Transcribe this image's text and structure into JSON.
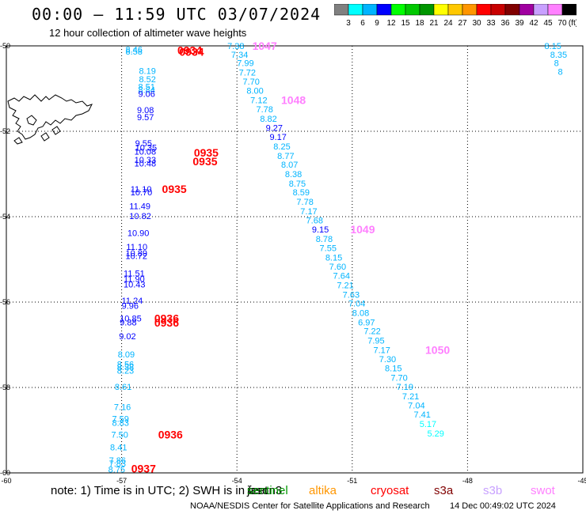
{
  "header": {
    "title": "00:00 – 11:59 UTC 03/07/2024",
    "subtitle": "12 hour collection of altimeter wave heights"
  },
  "colorbar": {
    "unit_label": "(ft)",
    "colors": [
      "#808080",
      "#00ffff",
      "#00b4ff",
      "#0000ff",
      "#00ff00",
      "#00c800",
      "#009600",
      "#ffff00",
      "#ffc800",
      "#ff9600",
      "#ff0000",
      "#c80000",
      "#800000",
      "#a000a0",
      "#c8a0ff",
      "#ff80ff",
      "#000000"
    ],
    "labels": [
      "3",
      "6",
      "9",
      "12",
      "15",
      "18",
      "21",
      "24",
      "27",
      "30",
      "33",
      "36",
      "39",
      "42",
      "45",
      "70"
    ]
  },
  "map": {
    "lat_labels": [
      "-50",
      "-52",
      "-54",
      "-56",
      "-58",
      "-60"
    ],
    "lon_labels": [
      "-60",
      "-57",
      "-54",
      "-51",
      "-48",
      "-45"
    ],
    "tracks": [
      {
        "name": "track-a",
        "time_label_color": "#ff0000",
        "points": [
          {
            "lon": -56.9,
            "lat": -50.08,
            "v": "8.46",
            "c": "#00b4ff"
          },
          {
            "lon": -56.9,
            "lat": -50.13,
            "v": "8.58",
            "c": "#00b4ff"
          },
          {
            "lon": -56.55,
            "lat": -50.58,
            "v": "8.19",
            "c": "#00b4ff"
          },
          {
            "lon": -56.55,
            "lat": -50.78,
            "v": "8.52",
            "c": "#00b4ff"
          },
          {
            "lon": -56.57,
            "lat": -50.95,
            "v": "8.51",
            "c": "#00b4ff"
          },
          {
            "lon": -56.57,
            "lat": -51.03,
            "v": "8.84",
            "c": "#00b4ff"
          },
          {
            "lon": -56.57,
            "lat": -51.12,
            "v": "9.06",
            "c": "#0000ff"
          },
          {
            "lon": -56.6,
            "lat": -51.5,
            "v": "9.08",
            "c": "#0000ff"
          },
          {
            "lon": -56.6,
            "lat": -51.67,
            "v": "9.57",
            "c": "#0000ff"
          },
          {
            "lon": -56.65,
            "lat": -52.28,
            "v": "9.55",
            "c": "#0000ff"
          },
          {
            "lon": -56.65,
            "lat": -52.38,
            "v": "10.35",
            "c": "#0000ff"
          },
          {
            "lon": -56.67,
            "lat": -52.47,
            "v": "10.08",
            "c": "#0000ff"
          },
          {
            "lon": -56.67,
            "lat": -52.67,
            "v": "10.33",
            "c": "#0000ff"
          },
          {
            "lon": -56.67,
            "lat": -52.75,
            "v": "10.48",
            "c": "#0000ff"
          },
          {
            "lon": -56.77,
            "lat": -53.35,
            "v": "11.10",
            "c": "#0000ff"
          },
          {
            "lon": -56.77,
            "lat": -53.43,
            "v": "10.70",
            "c": "#0000ff"
          },
          {
            "lon": -56.8,
            "lat": -53.75,
            "v": "11.49",
            "c": "#0000ff"
          },
          {
            "lon": -56.8,
            "lat": -53.98,
            "v": "10.82",
            "c": "#0000ff"
          },
          {
            "lon": -56.85,
            "lat": -54.38,
            "v": "10.90",
            "c": "#0000ff"
          },
          {
            "lon": -56.88,
            "lat": -54.7,
            "v": "11.10",
            "c": "#0000ff"
          },
          {
            "lon": -56.9,
            "lat": -54.85,
            "v": "10.89",
            "c": "#0000ff"
          },
          {
            "lon": -56.9,
            "lat": -54.92,
            "v": "10.72",
            "c": "#0000ff"
          },
          {
            "lon": -56.95,
            "lat": -55.32,
            "v": "11.51",
            "c": "#0000ff"
          },
          {
            "lon": -56.95,
            "lat": -55.45,
            "v": "11.90",
            "c": "#0000ff"
          },
          {
            "lon": -56.95,
            "lat": -55.58,
            "v": "10.43",
            "c": "#0000ff"
          },
          {
            "lon": -57.0,
            "lat": -55.96,
            "v": "11.24",
            "c": "#0000ff"
          },
          {
            "lon": -57.0,
            "lat": -56.08,
            "v": "9.96",
            "c": "#0000ff"
          },
          {
            "lon": -57.05,
            "lat": -56.38,
            "v": "10.85",
            "c": "#0000ff"
          },
          {
            "lon": -57.05,
            "lat": -56.47,
            "v": "9.88",
            "c": "#0000ff"
          },
          {
            "lon": -57.07,
            "lat": -56.8,
            "v": "9.02",
            "c": "#0000ff"
          },
          {
            "lon": -57.1,
            "lat": -57.22,
            "v": "8.09",
            "c": "#00b4ff"
          },
          {
            "lon": -57.12,
            "lat": -57.45,
            "v": "8.56",
            "c": "#00b4ff"
          },
          {
            "lon": -57.12,
            "lat": -57.52,
            "v": "8.38",
            "c": "#00b4ff"
          },
          {
            "lon": -57.12,
            "lat": -57.6,
            "v": "8.23",
            "c": "#00b4ff"
          },
          {
            "lon": -57.18,
            "lat": -57.98,
            "v": "8.61",
            "c": "#00b4ff"
          },
          {
            "lon": -57.2,
            "lat": -58.45,
            "v": "7.16",
            "c": "#00b4ff"
          },
          {
            "lon": -57.25,
            "lat": -58.73,
            "v": "7.59",
            "c": "#00b4ff"
          },
          {
            "lon": -57.25,
            "lat": -58.82,
            "v": "8.83",
            "c": "#00b4ff"
          },
          {
            "lon": -57.27,
            "lat": -59.1,
            "v": "7.50",
            "c": "#00b4ff"
          },
          {
            "lon": -57.3,
            "lat": -59.4,
            "v": "8.41",
            "c": "#00b4ff"
          },
          {
            "lon": -57.33,
            "lat": -59.7,
            "v": "7.86",
            "c": "#00b4ff"
          },
          {
            "lon": -57.33,
            "lat": -59.78,
            "v": "7.83",
            "c": "#00b4ff"
          },
          {
            "lon": -57.35,
            "lat": -59.92,
            "v": "8.75",
            "c": "#00b4ff"
          }
        ],
        "time_labels": [
          {
            "lon": -55.55,
            "lat": -50.1,
            "t": "0934"
          },
          {
            "lon": -55.5,
            "lat": -50.14,
            "t": "0934"
          },
          {
            "lon": -55.12,
            "lat": -52.5,
            "t": "0935"
          },
          {
            "lon": -55.15,
            "lat": -52.7,
            "t": "0935"
          },
          {
            "lon": -55.95,
            "lat": -53.35,
            "t": "0935"
          },
          {
            "lon": -56.15,
            "lat": -56.38,
            "t": "0936"
          },
          {
            "lon": -56.15,
            "lat": -56.48,
            "t": "0936"
          },
          {
            "lon": -56.05,
            "lat": -59.1,
            "t": "0936"
          },
          {
            "lon": -56.75,
            "lat": -59.9,
            "t": "0937"
          }
        ]
      },
      {
        "name": "track-b",
        "time_label_color": "#ff80ff",
        "points": [
          {
            "lon": -54.25,
            "lat": -50.0,
            "v": "7.38",
            "c": "#00b4ff"
          },
          {
            "lon": -54.15,
            "lat": -50.2,
            "v": "7.34",
            "c": "#00b4ff"
          },
          {
            "lon": -54.0,
            "lat": -50.4,
            "v": "7.99",
            "c": "#00b4ff"
          },
          {
            "lon": -53.95,
            "lat": -50.62,
            "v": "7.72",
            "c": "#00b4ff"
          },
          {
            "lon": -53.85,
            "lat": -50.83,
            "v": "7.70",
            "c": "#00b4ff"
          },
          {
            "lon": -53.75,
            "lat": -51.05,
            "v": "8.00",
            "c": "#00b4ff"
          },
          {
            "lon": -53.65,
            "lat": -51.27,
            "v": "7.12",
            "c": "#00b4ff"
          },
          {
            "lon": -53.5,
            "lat": -51.48,
            "v": "7.78",
            "c": "#00b4ff"
          },
          {
            "lon": -53.4,
            "lat": -51.7,
            "v": "8.82",
            "c": "#00b4ff"
          },
          {
            "lon": -53.25,
            "lat": -51.92,
            "v": "9.27",
            "c": "#0000ff"
          },
          {
            "lon": -53.15,
            "lat": -52.13,
            "v": "9.17",
            "c": "#0000ff"
          },
          {
            "lon": -53.05,
            "lat": -52.35,
            "v": "8.25",
            "c": "#00b4ff"
          },
          {
            "lon": -52.95,
            "lat": -52.57,
            "v": "8.77",
            "c": "#00b4ff"
          },
          {
            "lon": -52.85,
            "lat": -52.78,
            "v": "8.07",
            "c": "#00b4ff"
          },
          {
            "lon": -52.75,
            "lat": -53.0,
            "v": "8.38",
            "c": "#00b4ff"
          },
          {
            "lon": -52.65,
            "lat": -53.22,
            "v": "8.75",
            "c": "#00b4ff"
          },
          {
            "lon": -52.55,
            "lat": -53.43,
            "v": "8.59",
            "c": "#00b4ff"
          },
          {
            "lon": -52.45,
            "lat": -53.65,
            "v": "7.78",
            "c": "#00b4ff"
          },
          {
            "lon": -52.35,
            "lat": -53.87,
            "v": "7.17",
            "c": "#00b4ff"
          },
          {
            "lon": -52.2,
            "lat": -54.08,
            "v": "7.68",
            "c": "#00b4ff"
          },
          {
            "lon": -52.05,
            "lat": -54.3,
            "v": "9.15",
            "c": "#0000ff"
          },
          {
            "lon": -51.95,
            "lat": -54.52,
            "v": "8.78",
            "c": "#00b4ff"
          },
          {
            "lon": -51.85,
            "lat": -54.73,
            "v": "7.55",
            "c": "#00b4ff"
          },
          {
            "lon": -51.7,
            "lat": -54.95,
            "v": "8.15",
            "c": "#00b4ff"
          },
          {
            "lon": -51.6,
            "lat": -55.17,
            "v": "7.60",
            "c": "#00b4ff"
          },
          {
            "lon": -51.5,
            "lat": -55.38,
            "v": "7.64",
            "c": "#00b4ff"
          },
          {
            "lon": -51.4,
            "lat": -55.6,
            "v": "7.21",
            "c": "#00b4ff"
          },
          {
            "lon": -51.25,
            "lat": -55.82,
            "v": "7.63",
            "c": "#00b4ff"
          },
          {
            "lon": -51.1,
            "lat": -56.03,
            "v": "7.04",
            "c": "#00b4ff"
          },
          {
            "lon": -51.0,
            "lat": -56.25,
            "v": "8.08",
            "c": "#00b4ff"
          },
          {
            "lon": -50.85,
            "lat": -56.47,
            "v": "6.97",
            "c": "#00b4ff"
          },
          {
            "lon": -50.7,
            "lat": -56.68,
            "v": "7.22",
            "c": "#00b4ff"
          },
          {
            "lon": -50.6,
            "lat": -56.9,
            "v": "7.95",
            "c": "#00b4ff"
          },
          {
            "lon": -50.45,
            "lat": -57.12,
            "v": "7.17",
            "c": "#00b4ff"
          },
          {
            "lon": -50.3,
            "lat": -57.33,
            "v": "7.30",
            "c": "#00b4ff"
          },
          {
            "lon": -50.15,
            "lat": -57.55,
            "v": "8.15",
            "c": "#00b4ff"
          },
          {
            "lon": -50.0,
            "lat": -57.77,
            "v": "7.70",
            "c": "#00b4ff"
          },
          {
            "lon": -49.85,
            "lat": -57.98,
            "v": "7.19",
            "c": "#00b4ff"
          },
          {
            "lon": -49.7,
            "lat": -58.2,
            "v": "7.21",
            "c": "#00b4ff"
          },
          {
            "lon": -49.55,
            "lat": -58.42,
            "v": "7.04",
            "c": "#00b4ff"
          },
          {
            "lon": -49.4,
            "lat": -58.63,
            "v": "7.41",
            "c": "#00b4ff"
          },
          {
            "lon": -49.25,
            "lat": -58.85,
            "v": "5.17",
            "c": "#00ffff"
          },
          {
            "lon": -49.05,
            "lat": -59.07,
            "v": "5.29",
            "c": "#00ffff"
          }
        ],
        "time_labels": [
          {
            "lon": -53.6,
            "lat": -50.0,
            "t": "1047"
          },
          {
            "lon": -52.85,
            "lat": -51.27,
            "t": "1048"
          },
          {
            "lon": -51.05,
            "lat": -54.3,
            "t": "1049"
          },
          {
            "lon": -49.1,
            "lat": -57.12,
            "t": "1050"
          }
        ]
      },
      {
        "name": "track-c",
        "time_label_color": "#ff80ff",
        "points": [
          {
            "lon": -46.0,
            "lat": -50.0,
            "v": "8.15",
            "c": "#00b4ff"
          },
          {
            "lon": -45.85,
            "lat": -50.2,
            "v": "8.35",
            "c": "#00b4ff"
          },
          {
            "lon": -45.75,
            "lat": -50.4,
            "v": "8",
            "c": "#00b4ff"
          },
          {
            "lon": -45.65,
            "lat": -50.6,
            "v": "8",
            "c": "#00b4ff"
          }
        ],
        "time_labels": []
      }
    ]
  },
  "footer": {
    "note": "note:  1) Time is in UTC; 2) SWH is in feet",
    "satellites": [
      {
        "name": "jason3",
        "color": "#000000"
      },
      {
        "name": "sentinel",
        "color": "#009600"
      },
      {
        "name": "altika",
        "color": "#ff9600"
      },
      {
        "name": "cryosat",
        "color": "#ff0000"
      },
      {
        "name": "s3a",
        "color": "#800000"
      },
      {
        "name": "s3b",
        "color": "#c8a0ff"
      },
      {
        "name": "swot",
        "color": "#ff80ff"
      }
    ],
    "credit": "NOAA/NESDIS Center for Satellite Applications and Research",
    "timestamp": "14 Dec 00:49:02 UTC 2024"
  }
}
